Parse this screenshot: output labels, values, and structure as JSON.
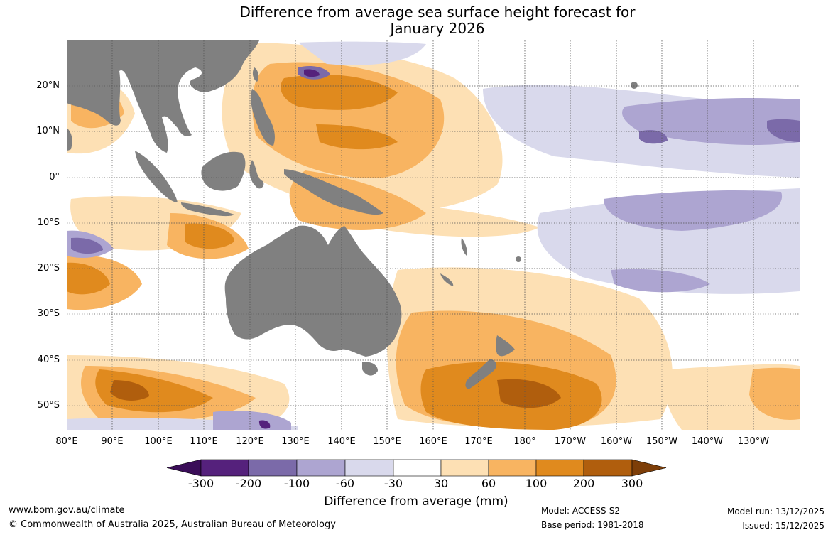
{
  "title_line1": "Difference from average sea surface height forecast for",
  "title_line2": "January 2026",
  "lat_labels": [
    "20°N",
    "10°N",
    "0°",
    "10°S",
    "20°S",
    "30°S",
    "40°S",
    "50°S"
  ],
  "lon_labels": [
    "80°E",
    "90°E",
    "100°E",
    "110°E",
    "120°E",
    "130°E",
    "140°E",
    "150°E",
    "160°E",
    "170°E",
    "180°",
    "170°W",
    "160°W",
    "150°W",
    "140°W",
    "130°W"
  ],
  "colorbar": {
    "ticks": [
      "-300",
      "-200",
      "-100",
      "-60",
      "-30",
      "30",
      "60",
      "100",
      "200",
      "300"
    ],
    "colors": [
      "#3a0d58",
      "#55217c",
      "#7b6aa9",
      "#ada5d1",
      "#d9d9ec",
      "#ffffff",
      "#fde0b4",
      "#f8b461",
      "#e08a1e",
      "#b05e0d",
      "#7d3e08"
    ],
    "title": "Difference from average (mm)"
  },
  "colors": {
    "land": "#808080",
    "grid": "#555555"
  },
  "footer": {
    "website": "www.bom.gov.au/climate",
    "copyright": "© Commonwealth of Australia 2025, Australian Bureau of Meteorology",
    "model": "Model: ACCESS-S2",
    "base_period": "Base period: 1981-2018",
    "model_run": "Model run: 13/12/2025",
    "issued": "Issued: 15/12/2025"
  }
}
